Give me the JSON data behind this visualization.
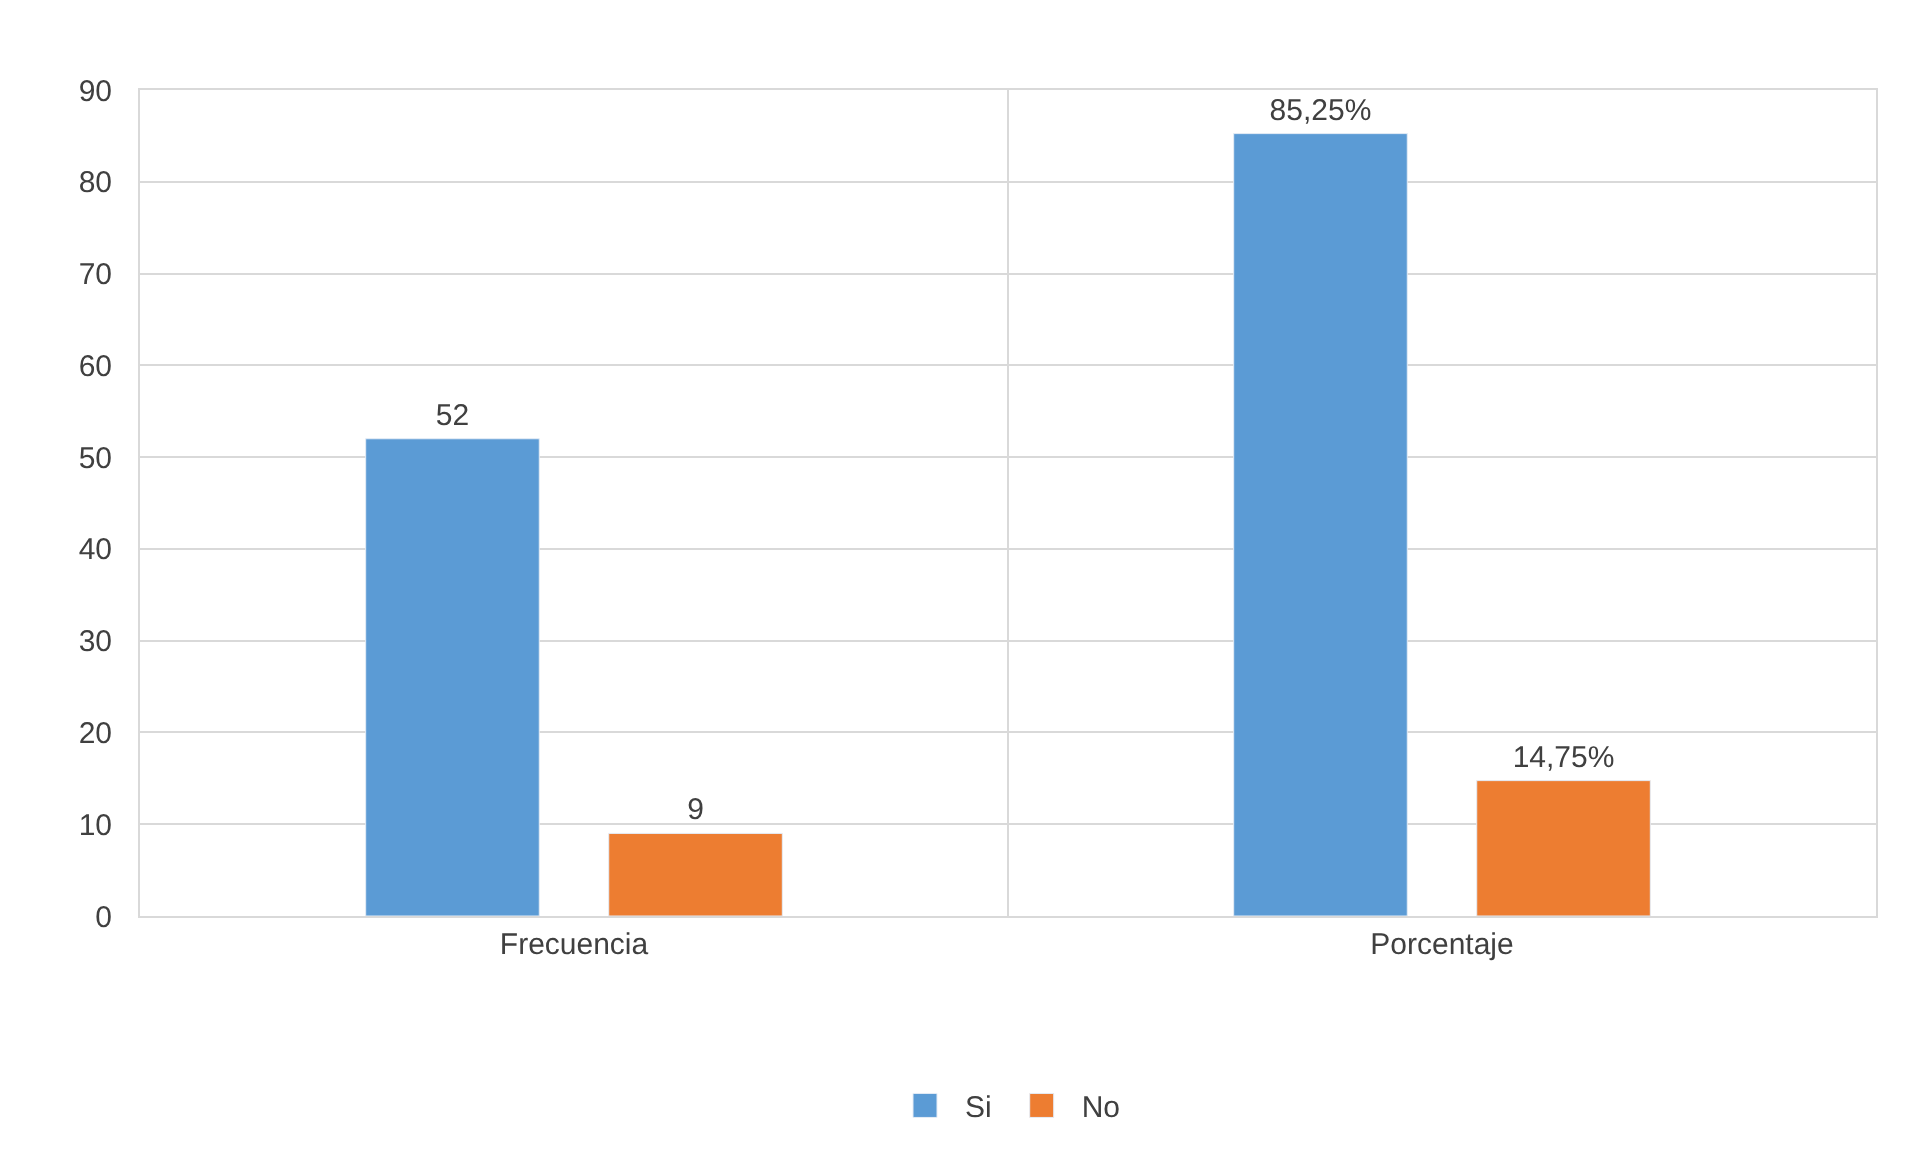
{
  "chart_data": {
    "type": "bar",
    "categories": [
      "Frecuencia",
      "Porcentaje"
    ],
    "series": [
      {
        "name": "Si",
        "color": "#5b9bd5",
        "values": [
          52,
          85.25
        ],
        "value_labels": [
          "52",
          "85,25%"
        ]
      },
      {
        "name": "No",
        "color": "#ed7d31",
        "values": [
          9,
          14.75
        ],
        "value_labels": [
          "9",
          "14,75%"
        ]
      }
    ],
    "ylim": [
      0,
      90
    ],
    "yticks": [
      0,
      10,
      20,
      30,
      40,
      50,
      60,
      70,
      80,
      90
    ],
    "grid": true,
    "legend": "bottom"
  }
}
